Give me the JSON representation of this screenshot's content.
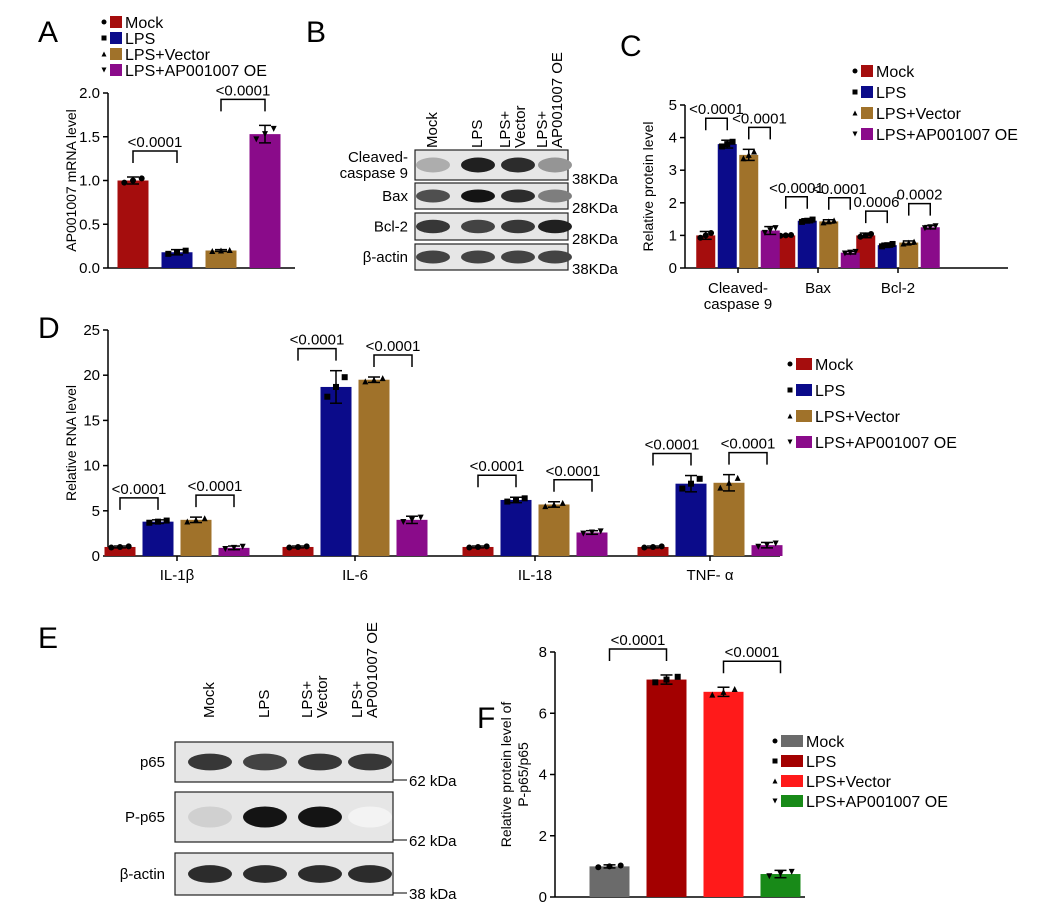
{
  "panels": [
    "A",
    "B",
    "C",
    "D",
    "E",
    "F"
  ],
  "chart_data": [
    {
      "type": "bar",
      "panel": "A",
      "title": "",
      "ylabel": "AP001007 mRNA level",
      "ylim": [
        0,
        2
      ],
      "yticks": [
        "0.0",
        "0.5",
        "1.0",
        "1.5",
        "2.0"
      ],
      "groups": [
        ""
      ],
      "legend": [
        "Mock",
        "LPS",
        "LPS+Vector",
        "LPS+AP001007 OE"
      ],
      "colors": [
        "#a50d0d",
        "#0b0b8a",
        "#a0722a",
        "#8a0b8a"
      ],
      "series": [
        {
          "name": "Mock",
          "values": [
            1.0
          ],
          "err": [
            0.04
          ]
        },
        {
          "name": "LPS",
          "values": [
            0.18
          ],
          "err": [
            0.03
          ]
        },
        {
          "name": "LPS+Vector",
          "values": [
            0.2
          ],
          "err": [
            0.01
          ]
        },
        {
          "name": "LPS+AP001007 OE",
          "values": [
            1.53
          ],
          "err": [
            0.1
          ]
        }
      ],
      "annotations": [
        {
          "group": 0,
          "from": 0,
          "to": 1,
          "text": "<0.0001"
        },
        {
          "group": 0,
          "from": 2,
          "to": 3,
          "text": "<0.0001"
        }
      ]
    },
    {
      "type": "bar",
      "panel": "C",
      "ylabel": "Relative protein level",
      "ylim": [
        0,
        5
      ],
      "yticks": [
        "0",
        "1",
        "2",
        "3",
        "4",
        "5"
      ],
      "groups": [
        [
          "Cleaved-",
          "caspase 9"
        ],
        [
          "Bax"
        ],
        [
          "Bcl-2"
        ]
      ],
      "legend": [
        "Mock",
        "LPS",
        "LPS+Vector",
        "LPS+AP001007 OE"
      ],
      "colors": [
        "#a50d0d",
        "#0b0b8a",
        "#a0722a",
        "#8a0b8a"
      ],
      "series": [
        {
          "name": "Mock",
          "values": [
            1.0,
            1.0,
            1.0
          ],
          "err": [
            0.12,
            0.02,
            0.07
          ]
        },
        {
          "name": "LPS",
          "values": [
            3.8,
            1.45,
            0.7
          ],
          "err": [
            0.12,
            0.06,
            0.06
          ]
        },
        {
          "name": "LPS+Vector",
          "values": [
            3.47,
            1.43,
            0.78
          ],
          "err": [
            0.17,
            0.05,
            0.05
          ]
        },
        {
          "name": "LPS+AP001007 OE",
          "values": [
            1.15,
            0.47,
            1.25
          ],
          "err": [
            0.12,
            0.04,
            0.05
          ]
        }
      ],
      "annotations": [
        {
          "group": 0,
          "from": 0,
          "to": 1,
          "text": "<0.0001"
        },
        {
          "group": 0,
          "from": 2,
          "to": 3,
          "text": "<0.0001"
        },
        {
          "group": 1,
          "from": 0,
          "to": 1,
          "text": "<0.0001"
        },
        {
          "group": 1,
          "from": 2,
          "to": 3,
          "text": "<0.0001"
        },
        {
          "group": 2,
          "from": 0,
          "to": 1,
          "text": "0.0006"
        },
        {
          "group": 2,
          "from": 2,
          "to": 3,
          "text": "0.0002"
        }
      ]
    },
    {
      "type": "bar",
      "panel": "D",
      "ylabel": "Relative RNA level",
      "ylim": [
        0,
        25
      ],
      "yticks": [
        "0",
        "5",
        "10",
        "15",
        "20",
        "25"
      ],
      "groups": [
        [
          "IL-1β"
        ],
        [
          "IL-6"
        ],
        [
          "IL-18"
        ],
        [
          "TNF- α"
        ]
      ],
      "legend": [
        "Mock",
        "LPS",
        "LPS+Vector",
        "LPS+AP001007 OE"
      ],
      "colors": [
        "#a50d0d",
        "#0b0b8a",
        "#a0722a",
        "#8a0b8a"
      ],
      "series": [
        {
          "name": "Mock",
          "values": [
            1.0,
            1.0,
            1.0,
            1.0
          ],
          "err": [
            0.1,
            0.1,
            0.1,
            0.1
          ]
        },
        {
          "name": "LPS",
          "values": [
            3.8,
            18.7,
            6.2,
            8.0
          ],
          "err": [
            0.2,
            1.8,
            0.3,
            0.9
          ]
        },
        {
          "name": "LPS+Vector",
          "values": [
            4.0,
            19.5,
            5.7,
            8.1
          ],
          "err": [
            0.3,
            0.3,
            0.3,
            0.9
          ]
        },
        {
          "name": "LPS+AP001007 OE",
          "values": [
            0.9,
            4.0,
            2.6,
            1.2
          ],
          "err": [
            0.2,
            0.4,
            0.2,
            0.3
          ]
        }
      ],
      "annotations": [
        {
          "group": 0,
          "from": 0,
          "to": 1,
          "text": "<0.0001"
        },
        {
          "group": 0,
          "from": 2,
          "to": 3,
          "text": "<0.0001"
        },
        {
          "group": 1,
          "from": 0,
          "to": 1,
          "text": "<0.0001"
        },
        {
          "group": 1,
          "from": 2,
          "to": 3,
          "text": "<0.0001"
        },
        {
          "group": 2,
          "from": 0,
          "to": 1,
          "text": "<0.0001"
        },
        {
          "group": 2,
          "from": 2,
          "to": 3,
          "text": "<0.0001"
        },
        {
          "group": 3,
          "from": 0,
          "to": 1,
          "text": "<0.0001"
        },
        {
          "group": 3,
          "from": 2,
          "to": 3,
          "text": "<0.0001"
        }
      ]
    },
    {
      "type": "bar",
      "panel": "F",
      "ylabel": "Relative protein level of P-p65/p65",
      "ylabel_lines": [
        "Relative protein level of",
        "P-p65/p65"
      ],
      "ylim": [
        0,
        8
      ],
      "yticks": [
        "0",
        "2",
        "4",
        "6",
        "8"
      ],
      "groups": [
        ""
      ],
      "legend": [
        "Mock",
        "LPS",
        "LPS+Vector",
        "LPS+AP001007 OE"
      ],
      "colors": [
        "#6b6b6b",
        "#a30000",
        "#ff1a1a",
        "#188a18"
      ],
      "series": [
        {
          "name": "Mock",
          "values": [
            1.0
          ],
          "err": [
            0.05
          ]
        },
        {
          "name": "LPS",
          "values": [
            7.1
          ],
          "err": [
            0.15
          ]
        },
        {
          "name": "LPS+Vector",
          "values": [
            6.7
          ],
          "err": [
            0.15
          ]
        },
        {
          "name": "LPS+AP001007 OE",
          "values": [
            0.75
          ],
          "err": [
            0.12
          ]
        }
      ],
      "annotations": [
        {
          "group": 0,
          "from": 0,
          "to": 1,
          "text": "<0.0001"
        },
        {
          "group": 0,
          "from": 2,
          "to": 3,
          "text": "<0.0001"
        }
      ]
    }
  ],
  "blots": [
    {
      "panel": "B",
      "lanes": [
        [
          "Mock"
        ],
        [
          "LPS"
        ],
        [
          "LPS+",
          "Vector"
        ],
        [
          "LPS+",
          "AP001007 OE"
        ]
      ],
      "rows": [
        {
          "label": [
            "Cleaved-",
            "caspase 9"
          ],
          "marker": "38KDa",
          "intensity": [
            0.35,
            0.95,
            0.9,
            0.45
          ]
        },
        {
          "label": [
            "Bax"
          ],
          "marker": "28KDa",
          "intensity": [
            0.75,
            1.0,
            0.9,
            0.55
          ]
        },
        {
          "label": [
            "Bcl-2"
          ],
          "marker": "28KDa",
          "intensity": [
            0.85,
            0.8,
            0.85,
            0.95
          ]
        },
        {
          "label": [
            "β-actin"
          ],
          "marker": "38KDa",
          "intensity": [
            0.8,
            0.8,
            0.8,
            0.8
          ]
        }
      ]
    },
    {
      "panel": "E",
      "lanes": [
        [
          "Mock"
        ],
        [
          "LPS"
        ],
        [
          "LPS+",
          "Vector"
        ],
        [
          "LPS+",
          "AP001007 OE"
        ]
      ],
      "rows": [
        {
          "label": [
            "p65"
          ],
          "marker": "62 kDa",
          "intensity": [
            0.85,
            0.8,
            0.85,
            0.85
          ]
        },
        {
          "label": [
            "P-p65"
          ],
          "marker": "62 kDa",
          "intensity": [
            0.2,
            1.0,
            1.0,
            0.05
          ]
        },
        {
          "label": [
            "β-actin"
          ],
          "marker": "38 kDa",
          "intensity": [
            0.9,
            0.9,
            0.9,
            0.9
          ]
        }
      ]
    }
  ]
}
